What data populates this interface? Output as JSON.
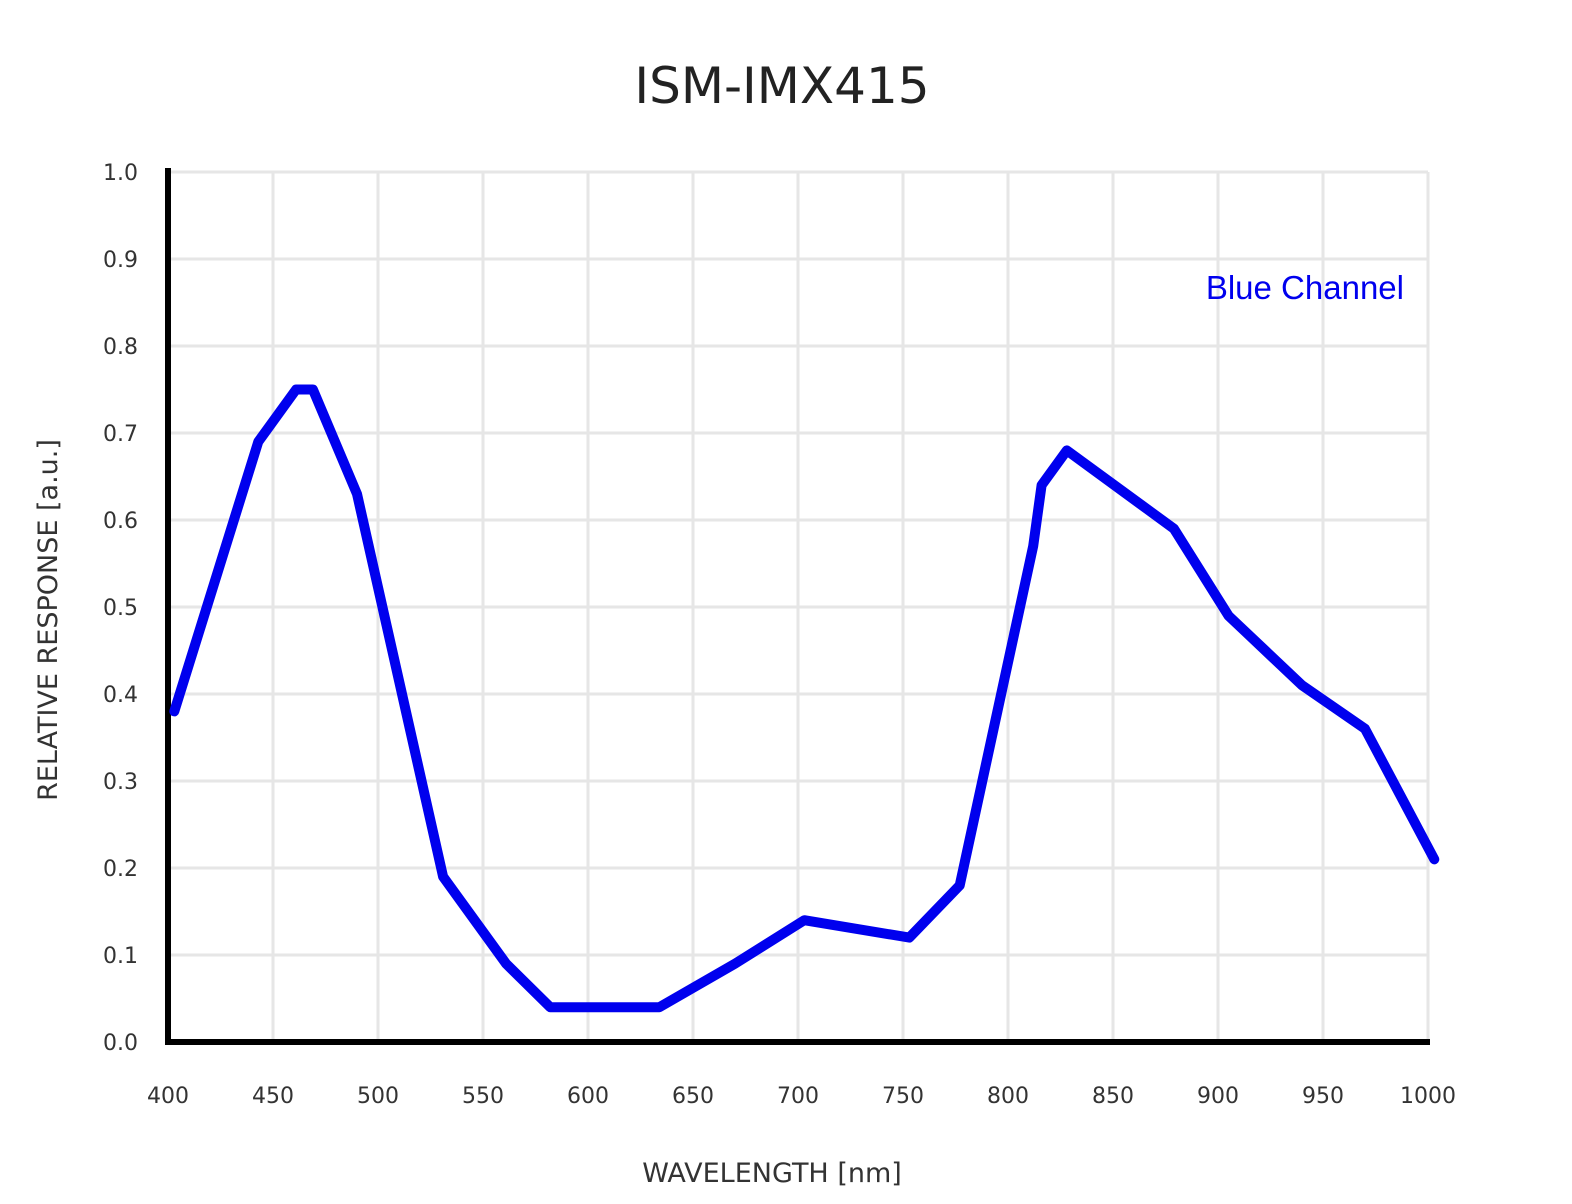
{
  "chart_data": {
    "type": "line",
    "title": "ISM-IMX415",
    "xlabel": "WAVELENGTH [nm]",
    "ylabel": "RELATIVE RESPONSE [a.u.]",
    "xlim": [
      400,
      1000
    ],
    "ylim": [
      0.0,
      1.0
    ],
    "xticks": [
      "400",
      "450",
      "500",
      "550",
      "600",
      "650",
      "700",
      "750",
      "800",
      "850",
      "900",
      "950",
      "1000"
    ],
    "yticks": [
      "0.0",
      "0.1",
      "0.2",
      "0.3",
      "0.4",
      "0.5",
      "0.6",
      "0.7",
      "0.8",
      "0.9",
      "1.0"
    ],
    "grid": true,
    "legend_position": "top-right",
    "series": [
      {
        "name": "Blue Channel",
        "color": "#0000ee",
        "x": [
          403,
          443,
          461,
          469,
          490,
          531,
          561,
          582,
          634,
          670,
          703,
          753,
          777,
          812,
          816,
          828,
          879,
          905,
          940,
          970,
          1003
        ],
        "y": [
          0.38,
          0.69,
          0.75,
          0.75,
          0.63,
          0.19,
          0.09,
          0.04,
          0.04,
          0.09,
          0.14,
          0.12,
          0.18,
          0.57,
          0.64,
          0.68,
          0.59,
          0.49,
          0.41,
          0.36,
          0.21
        ]
      }
    ]
  }
}
